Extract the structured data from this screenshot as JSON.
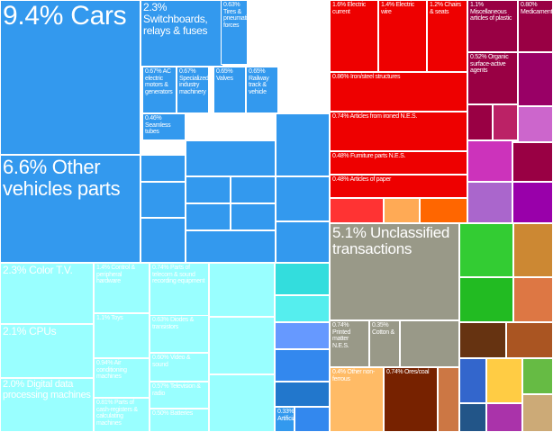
{
  "chart_data": {
    "type": "treemap",
    "colors": {
      "vehicles": "#3399ee",
      "electronics": "#99ffff",
      "furniture": "#ee0000",
      "unclassified": "#999988",
      "chemicals": "#990044",
      "other": "#33cc33"
    },
    "cells": [
      {
        "label": "9.4% Cars",
        "value": 9.4,
        "color": "#3399ee"
      },
      {
        "label": "6.6% Other vehicles parts",
        "value": 6.6,
        "color": "#3399ee"
      },
      {
        "label": "2.3% Switchboards, relays & fuses",
        "value": 2.3,
        "color": "#3399ee"
      },
      {
        "label": "0.63% Tires & pneumatic forces",
        "value": 0.63,
        "color": "#3399ee"
      },
      {
        "label": "0.67% AC electric motors & generators",
        "value": 0.67,
        "color": "#3399ee"
      },
      {
        "label": "0.67% Specialized industry machinery",
        "value": 0.67,
        "color": "#3399ee"
      },
      {
        "label": "0.65% Valves",
        "value": 0.65,
        "color": "#3399ee"
      },
      {
        "label": "0.65% Railway track & vehicle",
        "value": 0.65,
        "color": "#3399ee"
      },
      {
        "label": "0.46% Seamless tubes",
        "value": 0.46,
        "color": "#3399ee"
      },
      {
        "label": "1.6% Electric current",
        "value": 1.6,
        "color": "#ee0000"
      },
      {
        "label": "1.4% Electric wire",
        "value": 1.4,
        "color": "#ee0000"
      },
      {
        "label": "1.2% Chairs & seats",
        "value": 1.2,
        "color": "#ee0000"
      },
      {
        "label": "0.86% Iron/steel structures",
        "value": 0.86,
        "color": "#ee0000"
      },
      {
        "label": "0.74% Articles from ironed N.E.S.",
        "value": 0.74,
        "color": "#ee0000"
      },
      {
        "label": "0.48% Furniture parts N.E.S.",
        "value": 0.48,
        "color": "#ee0000"
      },
      {
        "label": "0.48% Articles of paper",
        "value": 0.48,
        "color": "#ee0000"
      },
      {
        "label": "1.1% Miscellaneous articles of plastic",
        "value": 1.1,
        "color": "#990044"
      },
      {
        "label": "0.80% Medicaments",
        "value": 0.8,
        "color": "#990044"
      },
      {
        "label": "0.52% Organic surface-active agents",
        "value": 0.52,
        "color": "#990044"
      },
      {
        "label": "2.3% Color T.V.",
        "value": 2.3,
        "color": "#99ffff"
      },
      {
        "label": "2.1% CPUs",
        "value": 2.1,
        "color": "#99ffff"
      },
      {
        "label": "2.0% Digital data processing machines",
        "value": 2.0,
        "color": "#99ffff"
      },
      {
        "label": "1.4% Control & peripheral hardware",
        "value": 1.4,
        "color": "#99ffff"
      },
      {
        "label": "1.1% Toys",
        "value": 1.1,
        "color": "#99ffff"
      },
      {
        "label": "0.94% Air conditioning machines",
        "value": 0.94,
        "color": "#99ffff"
      },
      {
        "label": "0.81% Parts of cash-registers & calculating machines",
        "value": 0.81,
        "color": "#99ffff"
      },
      {
        "label": "0.74% Parts of telecom & sound recording equipment",
        "value": 0.74,
        "color": "#99ffff"
      },
      {
        "label": "0.63% Diodes & transistors",
        "value": 0.63,
        "color": "#99ffff"
      },
      {
        "label": "0.60% Video & sound",
        "value": 0.6,
        "color": "#99ffff"
      },
      {
        "label": "0.57% Television & radio",
        "value": 0.57,
        "color": "#99ffff"
      },
      {
        "label": "0.50% Batteries",
        "value": 0.5,
        "color": "#99ffff"
      },
      {
        "label": "0.33% Artificial",
        "value": 0.33,
        "color": "#3399ee"
      },
      {
        "label": "5.1% Unclassified transactions",
        "value": 5.1,
        "color": "#999988"
      },
      {
        "label": "0.74% Printed matter N.E.S.",
        "value": 0.74,
        "color": "#999988"
      },
      {
        "label": "0.35% Cotton &",
        "value": 0.35,
        "color": "#999988"
      },
      {
        "label": "0.4% Other non-ferrous",
        "value": 0.4,
        "color": "#ffbb66"
      },
      {
        "label": "0.74% Ores/coal",
        "value": 0.74,
        "color": "#772200"
      }
    ]
  }
}
